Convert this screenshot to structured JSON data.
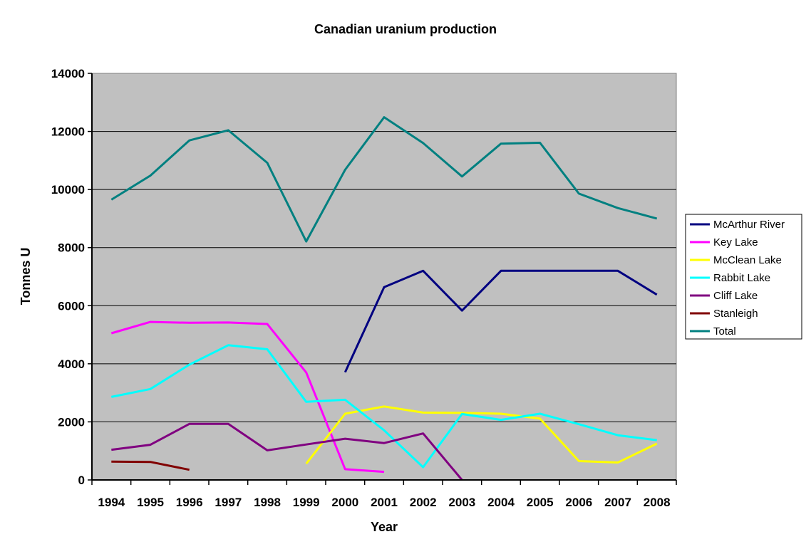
{
  "chart_data": {
    "type": "line",
    "title": "Canadian uranium production",
    "xlabel": "Year",
    "ylabel": "Tonnes U",
    "ylim": [
      0,
      14000
    ],
    "yticks": [
      0,
      2000,
      4000,
      6000,
      8000,
      10000,
      12000,
      14000
    ],
    "categories": [
      "1994",
      "1995",
      "1996",
      "1997",
      "1998",
      "1999",
      "2000",
      "2001",
      "2002",
      "2003",
      "2004",
      "2005",
      "2006",
      "2007",
      "2008"
    ],
    "grid": true,
    "legend_position": "right",
    "series": [
      {
        "name": "McArthur River",
        "color": "#000080",
        "values": [
          null,
          null,
          null,
          null,
          null,
          null,
          3710,
          6640,
          7200,
          5830,
          7200,
          7200,
          7200,
          7200,
          6380
        ]
      },
      {
        "name": "Key Lake",
        "color": "#ff00ff",
        "values": [
          5050,
          5440,
          5410,
          5420,
          5370,
          3700,
          370,
          280,
          null,
          null,
          null,
          null,
          null,
          null,
          null
        ]
      },
      {
        "name": "McClean Lake",
        "color": "#ffff00",
        "values": [
          null,
          null,
          null,
          null,
          null,
          560,
          2280,
          2530,
          2320,
          2310,
          2280,
          2110,
          650,
          600,
          1250
        ]
      },
      {
        "name": "Rabbit Lake",
        "color": "#00ffff",
        "values": [
          2860,
          3130,
          3970,
          4640,
          4500,
          2690,
          2760,
          1710,
          440,
          2270,
          2070,
          2280,
          1920,
          1540,
          1370
        ]
      },
      {
        "name": "Cliff Lake",
        "color": "#800080",
        "values": [
          1040,
          1210,
          1930,
          1930,
          1020,
          1220,
          1420,
          1270,
          1600,
          0,
          null,
          null,
          null,
          null,
          null
        ]
      },
      {
        "name": "Stanleigh",
        "color": "#800000",
        "values": [
          630,
          620,
          350,
          null,
          null,
          null,
          null,
          null,
          null,
          null,
          null,
          null,
          null,
          null,
          null
        ]
      },
      {
        "name": "Total",
        "color": "#008080",
        "values": [
          9650,
          10480,
          11690,
          12040,
          10920,
          8210,
          10680,
          12490,
          11600,
          10450,
          11580,
          11610,
          9860,
          9360,
          9000
        ]
      }
    ],
    "plot_background": "#c0c0c0"
  }
}
